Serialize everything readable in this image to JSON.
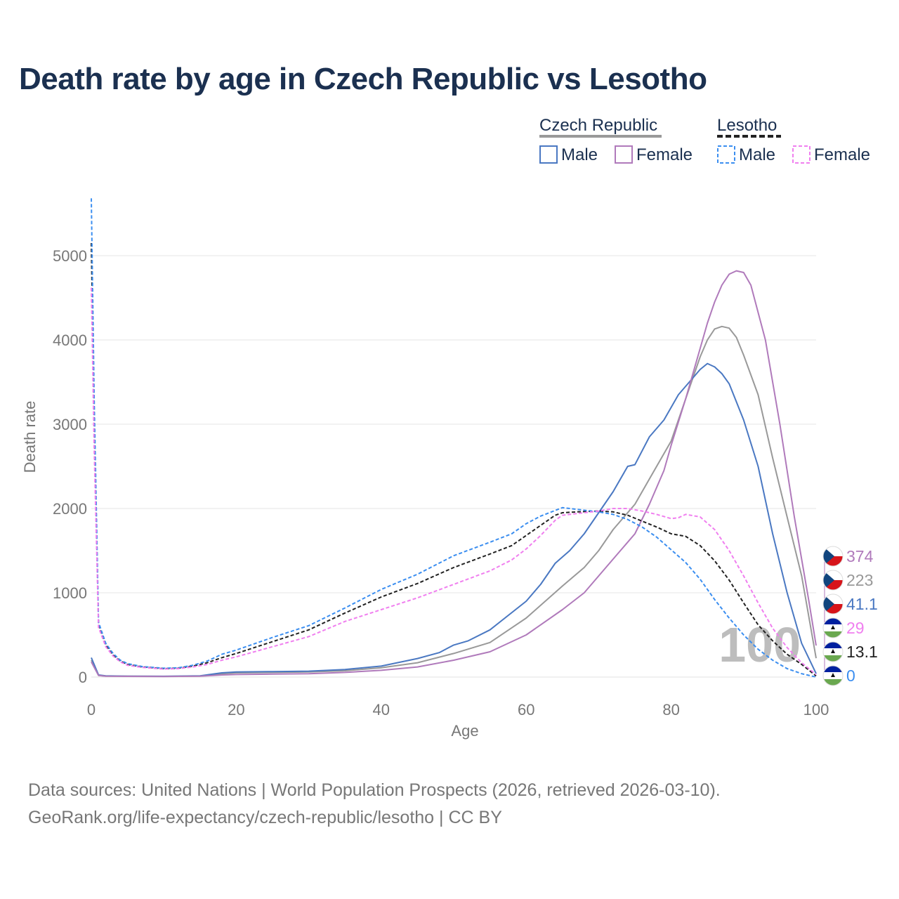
{
  "title": "Death rate by age in Czech Republic vs Lesotho",
  "legend": {
    "groups": [
      {
        "name": "Czech Republic",
        "line_color": "#999999",
        "dashed": false,
        "entries": [
          {
            "label": "Male",
            "color": "#4a78c2"
          },
          {
            "label": "Female",
            "color": "#b07abb"
          }
        ]
      },
      {
        "name": "Lesotho",
        "line_color": "#222222",
        "dashed": true,
        "entries": [
          {
            "label": "Male",
            "color": "#3b8ef0"
          },
          {
            "label": "Female",
            "color": "#f07fef"
          }
        ]
      }
    ]
  },
  "watermark_age": "100",
  "footer": {
    "line1": "Data sources: United Nations | World Population Prospects (2026, retrieved 2026-03-10).",
    "line2": "GeoRank.org/life-expectancy/czech-republic/lesotho | CC BY"
  },
  "chart_data": {
    "type": "line",
    "title": "Death rate by age in Czech Republic vs Lesotho",
    "xlabel": "Age",
    "ylabel": "Death rate",
    "xlim": [
      0,
      100
    ],
    "ylim": [
      0,
      5700
    ],
    "xticks": [
      0,
      20,
      40,
      60,
      80,
      100
    ],
    "yticks": [
      0,
      1000,
      2000,
      3000,
      4000,
      5000
    ],
    "grid": true,
    "legend_position": "top-right",
    "series": [
      {
        "name": "Czech Republic (total)",
        "color": "#999999",
        "dashed": false,
        "end_label": "223",
        "flag": "czech-republic",
        "points": [
          [
            0,
            200
          ],
          [
            1,
            20
          ],
          [
            2,
            12
          ],
          [
            5,
            10
          ],
          [
            10,
            8
          ],
          [
            15,
            12
          ],
          [
            18,
            40
          ],
          [
            20,
            50
          ],
          [
            25,
            55
          ],
          [
            30,
            60
          ],
          [
            35,
            75
          ],
          [
            40,
            110
          ],
          [
            45,
            170
          ],
          [
            50,
            280
          ],
          [
            55,
            410
          ],
          [
            60,
            700
          ],
          [
            65,
            1080
          ],
          [
            68,
            1300
          ],
          [
            70,
            1500
          ],
          [
            72,
            1750
          ],
          [
            75,
            2050
          ],
          [
            77,
            2350
          ],
          [
            80,
            2800
          ],
          [
            82,
            3300
          ],
          [
            84,
            3800
          ],
          [
            85,
            4000
          ],
          [
            86,
            4130
          ],
          [
            87,
            4160
          ],
          [
            88,
            4140
          ],
          [
            89,
            4030
          ],
          [
            90,
            3820
          ],
          [
            92,
            3350
          ],
          [
            94,
            2600
          ],
          [
            96,
            1900
          ],
          [
            98,
            1200
          ],
          [
            100,
            223
          ]
        ]
      },
      {
        "name": "Czech Republic Male",
        "color": "#4a78c2",
        "dashed": false,
        "end_label": "41.1",
        "flag": "czech-republic",
        "points": [
          [
            0,
            230
          ],
          [
            1,
            25
          ],
          [
            2,
            15
          ],
          [
            5,
            10
          ],
          [
            10,
            9
          ],
          [
            15,
            15
          ],
          [
            18,
            50
          ],
          [
            20,
            60
          ],
          [
            25,
            65
          ],
          [
            30,
            70
          ],
          [
            35,
            90
          ],
          [
            40,
            130
          ],
          [
            45,
            220
          ],
          [
            48,
            290
          ],
          [
            50,
            380
          ],
          [
            52,
            430
          ],
          [
            55,
            560
          ],
          [
            60,
            900
          ],
          [
            62,
            1100
          ],
          [
            64,
            1350
          ],
          [
            66,
            1500
          ],
          [
            68,
            1700
          ],
          [
            70,
            1950
          ],
          [
            72,
            2200
          ],
          [
            74,
            2500
          ],
          [
            75,
            2520
          ],
          [
            77,
            2850
          ],
          [
            79,
            3050
          ],
          [
            81,
            3350
          ],
          [
            83,
            3550
          ],
          [
            84,
            3650
          ],
          [
            85,
            3720
          ],
          [
            86,
            3680
          ],
          [
            87,
            3600
          ],
          [
            88,
            3480
          ],
          [
            90,
            3050
          ],
          [
            92,
            2500
          ],
          [
            94,
            1700
          ],
          [
            96,
            1000
          ],
          [
            98,
            400
          ],
          [
            100,
            41
          ]
        ]
      },
      {
        "name": "Czech Republic Female",
        "color": "#b07abb",
        "dashed": false,
        "end_label": "374",
        "flag": "czech-republic",
        "points": [
          [
            0,
            180
          ],
          [
            1,
            18
          ],
          [
            2,
            10
          ],
          [
            5,
            8
          ],
          [
            10,
            7
          ],
          [
            15,
            10
          ],
          [
            18,
            25
          ],
          [
            20,
            30
          ],
          [
            25,
            35
          ],
          [
            30,
            40
          ],
          [
            35,
            55
          ],
          [
            40,
            80
          ],
          [
            45,
            120
          ],
          [
            50,
            200
          ],
          [
            55,
            300
          ],
          [
            60,
            500
          ],
          [
            65,
            800
          ],
          [
            68,
            1000
          ],
          [
            70,
            1200
          ],
          [
            72,
            1400
          ],
          [
            75,
            1700
          ],
          [
            77,
            2050
          ],
          [
            79,
            2450
          ],
          [
            80,
            2750
          ],
          [
            82,
            3300
          ],
          [
            84,
            3900
          ],
          [
            85,
            4200
          ],
          [
            86,
            4450
          ],
          [
            87,
            4650
          ],
          [
            88,
            4780
          ],
          [
            89,
            4820
          ],
          [
            90,
            4800
          ],
          [
            91,
            4650
          ],
          [
            93,
            4000
          ],
          [
            95,
            3000
          ],
          [
            97,
            1900
          ],
          [
            99,
            900
          ],
          [
            100,
            374
          ]
        ]
      },
      {
        "name": "Lesotho (total)",
        "color": "#222222",
        "dashed": true,
        "end_label": "13.1",
        "flag": "lesotho",
        "points": [
          [
            0,
            5150
          ],
          [
            0.4,
            3000
          ],
          [
            1,
            620
          ],
          [
            2,
            380
          ],
          [
            3,
            260
          ],
          [
            4,
            190
          ],
          [
            5,
            150
          ],
          [
            7,
            120
          ],
          [
            10,
            100
          ],
          [
            12,
            105
          ],
          [
            14,
            130
          ],
          [
            16,
            170
          ],
          [
            18,
            230
          ],
          [
            20,
            280
          ],
          [
            25,
            420
          ],
          [
            30,
            560
          ],
          [
            35,
            760
          ],
          [
            40,
            950
          ],
          [
            45,
            1110
          ],
          [
            50,
            1300
          ],
          [
            55,
            1460
          ],
          [
            58,
            1560
          ],
          [
            60,
            1680
          ],
          [
            62,
            1800
          ],
          [
            64,
            1920
          ],
          [
            65,
            1950
          ],
          [
            67,
            1960
          ],
          [
            70,
            1970
          ],
          [
            72,
            1960
          ],
          [
            74,
            1920
          ],
          [
            76,
            1850
          ],
          [
            78,
            1780
          ],
          [
            80,
            1700
          ],
          [
            82,
            1670
          ],
          [
            84,
            1560
          ],
          [
            86,
            1380
          ],
          [
            88,
            1150
          ],
          [
            90,
            880
          ],
          [
            92,
            620
          ],
          [
            94,
            430
          ],
          [
            96,
            270
          ],
          [
            98,
            150
          ],
          [
            100,
            13
          ]
        ]
      },
      {
        "name": "Lesotho Male",
        "color": "#3b8ef0",
        "dashed": true,
        "end_label": "0",
        "flag": "lesotho",
        "points": [
          [
            0,
            5680
          ],
          [
            0.4,
            3300
          ],
          [
            1,
            650
          ],
          [
            2,
            400
          ],
          [
            3,
            280
          ],
          [
            4,
            200
          ],
          [
            5,
            160
          ],
          [
            7,
            125
          ],
          [
            10,
            105
          ],
          [
            12,
            110
          ],
          [
            14,
            140
          ],
          [
            16,
            190
          ],
          [
            18,
            270
          ],
          [
            20,
            320
          ],
          [
            25,
            470
          ],
          [
            30,
            610
          ],
          [
            35,
            820
          ],
          [
            40,
            1040
          ],
          [
            45,
            1220
          ],
          [
            50,
            1440
          ],
          [
            55,
            1600
          ],
          [
            58,
            1700
          ],
          [
            60,
            1820
          ],
          [
            62,
            1910
          ],
          [
            65,
            2010
          ],
          [
            67,
            1990
          ],
          [
            70,
            1960
          ],
          [
            72,
            1930
          ],
          [
            74,
            1870
          ],
          [
            76,
            1780
          ],
          [
            78,
            1660
          ],
          [
            80,
            1510
          ],
          [
            82,
            1360
          ],
          [
            84,
            1160
          ],
          [
            86,
            920
          ],
          [
            88,
            700
          ],
          [
            90,
            500
          ],
          [
            92,
            330
          ],
          [
            94,
            200
          ],
          [
            96,
            100
          ],
          [
            98,
            40
          ],
          [
            100,
            0
          ]
        ]
      },
      {
        "name": "Lesotho Female",
        "color": "#f07fef",
        "dashed": true,
        "end_label": "29",
        "flag": "lesotho",
        "points": [
          [
            0,
            4620
          ],
          [
            0.4,
            2700
          ],
          [
            1,
            590
          ],
          [
            2,
            360
          ],
          [
            3,
            250
          ],
          [
            4,
            180
          ],
          [
            5,
            140
          ],
          [
            7,
            115
          ],
          [
            10,
            95
          ],
          [
            12,
            100
          ],
          [
            14,
            120
          ],
          [
            16,
            150
          ],
          [
            18,
            200
          ],
          [
            20,
            240
          ],
          [
            25,
            360
          ],
          [
            30,
            480
          ],
          [
            35,
            660
          ],
          [
            40,
            800
          ],
          [
            45,
            940
          ],
          [
            50,
            1100
          ],
          [
            55,
            1260
          ],
          [
            58,
            1390
          ],
          [
            60,
            1520
          ],
          [
            62,
            1680
          ],
          [
            64,
            1860
          ],
          [
            65,
            1920
          ],
          [
            67,
            1940
          ],
          [
            70,
            1970
          ],
          [
            72,
            2000
          ],
          [
            74,
            2000
          ],
          [
            76,
            1970
          ],
          [
            78,
            1930
          ],
          [
            80,
            1880
          ],
          [
            81,
            1890
          ],
          [
            82,
            1930
          ],
          [
            84,
            1900
          ],
          [
            86,
            1750
          ],
          [
            88,
            1500
          ],
          [
            90,
            1200
          ],
          [
            92,
            880
          ],
          [
            94,
            580
          ],
          [
            96,
            350
          ],
          [
            98,
            170
          ],
          [
            100,
            29
          ]
        ]
      }
    ]
  }
}
